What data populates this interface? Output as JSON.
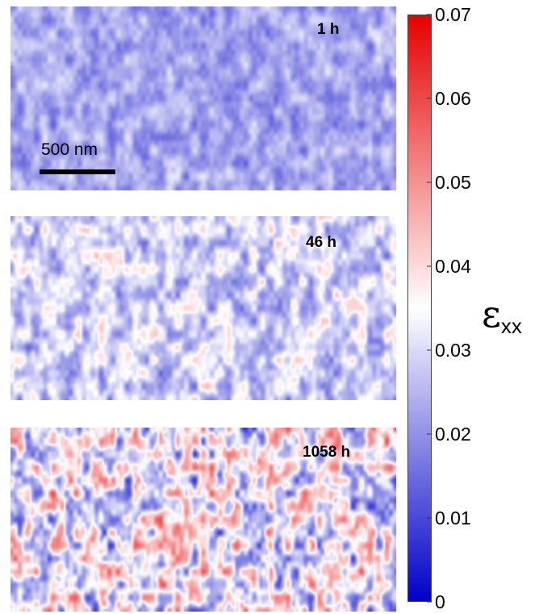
{
  "chart_data": {
    "type": "heatmap",
    "panels": [
      {
        "label": "1 h",
        "mean_strain": 0.023,
        "spread": 0.006
      },
      {
        "label": "46 h",
        "mean_strain": 0.029,
        "spread": 0.009
      },
      {
        "label": "1058 h",
        "mean_strain": 0.033,
        "spread": 0.016
      }
    ],
    "scale_bar_label": "500 nm",
    "colorbar": {
      "title_main": "ε",
      "title_sub": "xx",
      "range": [
        0,
        0.07
      ],
      "ticks": [
        "0",
        "0.01",
        "0.02",
        "0.03",
        "0.04",
        "0.05",
        "0.06",
        "0.07"
      ],
      "colors": {
        "min": "#0000c8",
        "mid": "#ffffff",
        "max": "#e60000"
      }
    }
  }
}
